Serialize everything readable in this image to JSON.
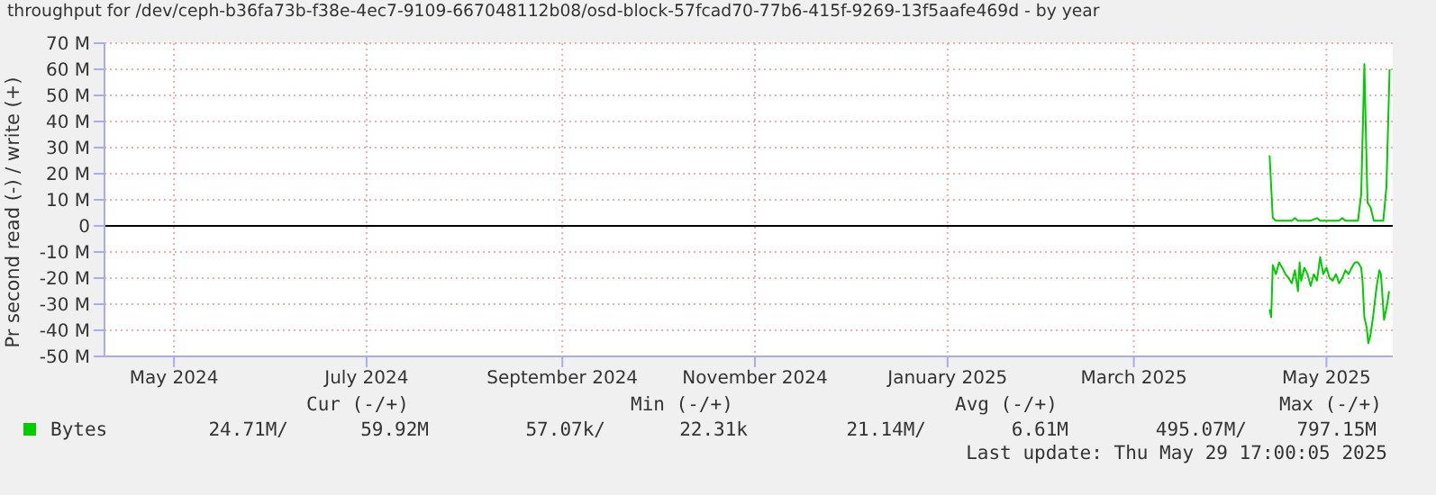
{
  "chart_data": {
    "type": "line",
    "title": "throughput for /dev/ceph-b36fa73b-f38e-4ec7-9109-667048112b08/osd-block-57fcad70-77b6-415f-9269-13f5aafe469d - by year",
    "ylabel": "Pr second read (-) / write (+)",
    "xlim": [
      "2024-04-09",
      "2025-05-22"
    ],
    "xticks": [
      {
        "value": "2024-05-01",
        "label": "May 2024"
      },
      {
        "value": "2024-07-01",
        "label": "July 2024"
      },
      {
        "value": "2024-09-01",
        "label": "September 2024"
      },
      {
        "value": "2024-11-01",
        "label": "November 2024"
      },
      {
        "value": "2025-01-01",
        "label": "January 2025"
      },
      {
        "value": "2025-03-01",
        "label": "March 2025"
      },
      {
        "value": "2025-05-01",
        "label": "May 2025"
      }
    ],
    "ylim": [
      -50,
      70
    ],
    "yticks": [
      {
        "value": -50,
        "label": "-50 M"
      },
      {
        "value": -40,
        "label": "-40 M"
      },
      {
        "value": -30,
        "label": "-30 M"
      },
      {
        "value": -20,
        "label": "-20 M"
      },
      {
        "value": -10,
        "label": "-10 M"
      },
      0,
      {
        "value": 10,
        "label": "10 M"
      },
      {
        "value": 20,
        "label": "20 M"
      },
      {
        "value": 30,
        "label": "30 M"
      },
      {
        "value": 40,
        "label": "40 M"
      },
      {
        "value": 50,
        "label": "50 M"
      },
      {
        "value": 60,
        "label": "60 M"
      },
      {
        "value": 70,
        "label": "70 M"
      }
    ],
    "grid": true,
    "legend": "bottom",
    "marker": "none",
    "line_style": "solid",
    "ref_lines": [
      {
        "axis": "y",
        "value": 0,
        "color": "#000000"
      }
    ],
    "series": [
      {
        "name": "Bytes",
        "color": "#00cc00",
        "x": [
          "2025-04-13",
          "2025-04-14",
          "2025-04-15",
          "2025-04-18",
          "2025-04-20",
          "2025-04-21",
          "2025-04-22",
          "2025-04-26",
          "2025-04-28",
          "2025-04-29",
          "2025-05-02",
          "2025-05-05",
          "2025-05-06",
          "2025-05-07",
          "2025-05-11",
          "2025-05-12",
          "2025-05-13",
          "2025-05-14",
          "2025-05-15",
          "2025-05-16",
          "2025-05-19",
          "2025-05-20",
          "2025-05-21"
        ],
        "values": [
          27,
          3,
          2,
          2,
          2,
          3,
          2,
          2,
          3,
          2,
          2,
          2,
          3,
          2,
          2,
          12,
          62,
          9,
          7,
          2,
          2,
          15,
          60
        ]
      },
      {
        "color": "#00cc00",
        "x": [
          "2025-04-13",
          "2025-04-13T12:00",
          "2025-04-14",
          "2025-04-15",
          "2025-04-16",
          "2025-04-17",
          "2025-04-18",
          "2025-04-19",
          "2025-04-20",
          "2025-04-21",
          "2025-04-22",
          "2025-04-22T12:00",
          "2025-04-23",
          "2025-04-24",
          "2025-04-25",
          "2025-04-26",
          "2025-04-27",
          "2025-04-28",
          "2025-04-29",
          "2025-04-30",
          "2025-05-01",
          "2025-05-02",
          "2025-05-03",
          "2025-05-04",
          "2025-05-05",
          "2025-05-06",
          "2025-05-07",
          "2025-05-08",
          "2025-05-09",
          "2025-05-10",
          "2025-05-11",
          "2025-05-12",
          "2025-05-12T10:00",
          "2025-05-13",
          "2025-05-13T18:00",
          "2025-05-14T06:00",
          "2025-05-14T22:00",
          "2025-05-15T18:00",
          "2025-05-16T22:00",
          "2025-05-17T18:00",
          "2025-05-18T06:00",
          "2025-05-19T06:00",
          "2025-05-20T06:00",
          "2025-05-20T20:00"
        ],
        "values": [
          -32,
          -35,
          -15,
          -18.5,
          -14,
          -16,
          -18.5,
          -20,
          -22,
          -17,
          -25,
          -14,
          -21,
          -16,
          -18.5,
          -23,
          -18.5,
          -21,
          -12,
          -18.5,
          -16,
          -20,
          -21,
          -18.5,
          -22,
          -20,
          -17,
          -18.5,
          -16,
          -14,
          -14,
          -16,
          -21,
          -35,
          -39,
          -45,
          -42,
          -35,
          -23,
          -17,
          -18.5,
          -36,
          -30,
          -25
        ]
      }
    ],
    "annotations": [
      "Cur (-/+)",
      "Min (-/+)",
      "Avg (-/+)",
      "Max (-/+)",
      "24.71M/",
      "59.92M",
      "57.07k/",
      "22.31k",
      "21.14M/",
      "6.61M",
      "495.07M/",
      "797.15M",
      "Last update: Thu May 29 17:00:05 2025"
    ]
  }
}
